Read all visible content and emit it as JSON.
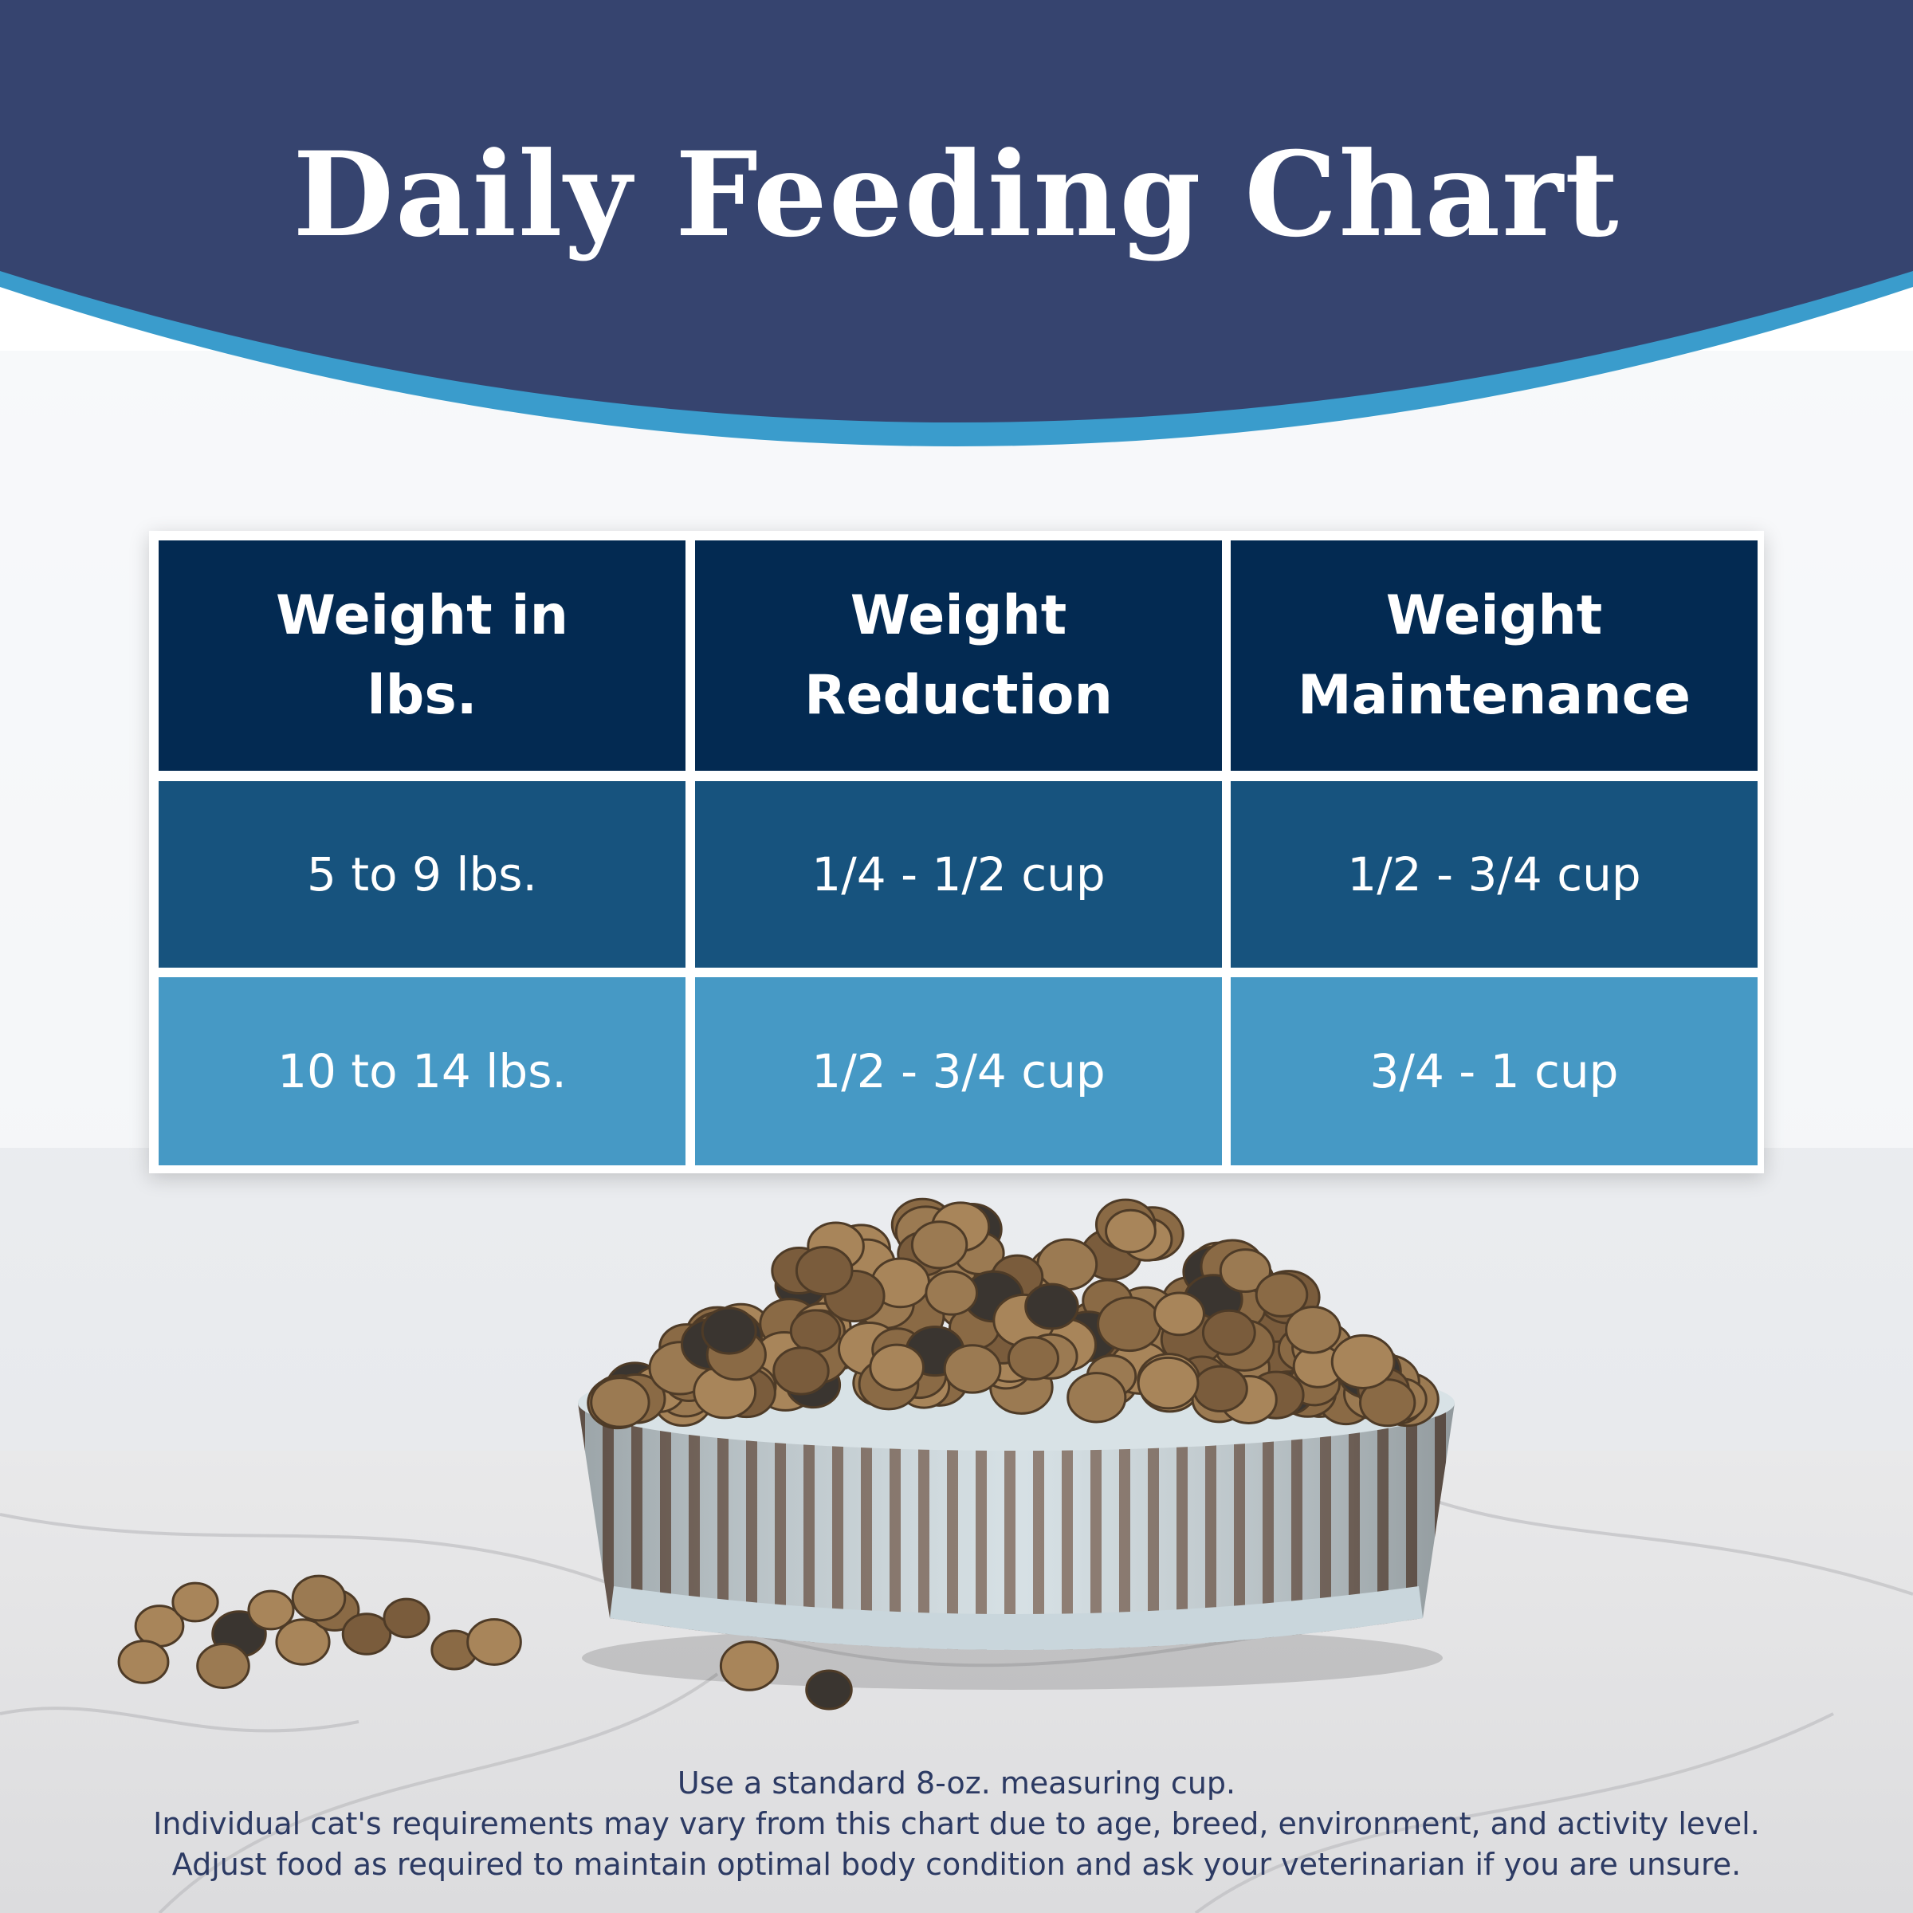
{
  "header": {
    "title": "Daily Feeding Chart"
  },
  "table": {
    "columns": [
      [
        "Weight in",
        "lbs."
      ],
      [
        "Weight",
        "Reduction"
      ],
      [
        "Weight",
        "Maintenance"
      ]
    ],
    "rows": [
      [
        "5 to 9 lbs.",
        "1/4 - 1/2 cup",
        "1/2 - 3/4 cup"
      ],
      [
        "10 to 14 lbs.",
        "1/2 - 3/4 cup",
        "3/4 - 1 cup"
      ]
    ]
  },
  "footer": {
    "notes": [
      "Use a standard 8-oz. measuring cup.",
      "Individual cat's requirements may vary from this chart due to age, breed, environment, and activity level.",
      "Adjust food as required to maintain optimal body condition and ask your veterinarian if you are unsure."
    ]
  }
}
